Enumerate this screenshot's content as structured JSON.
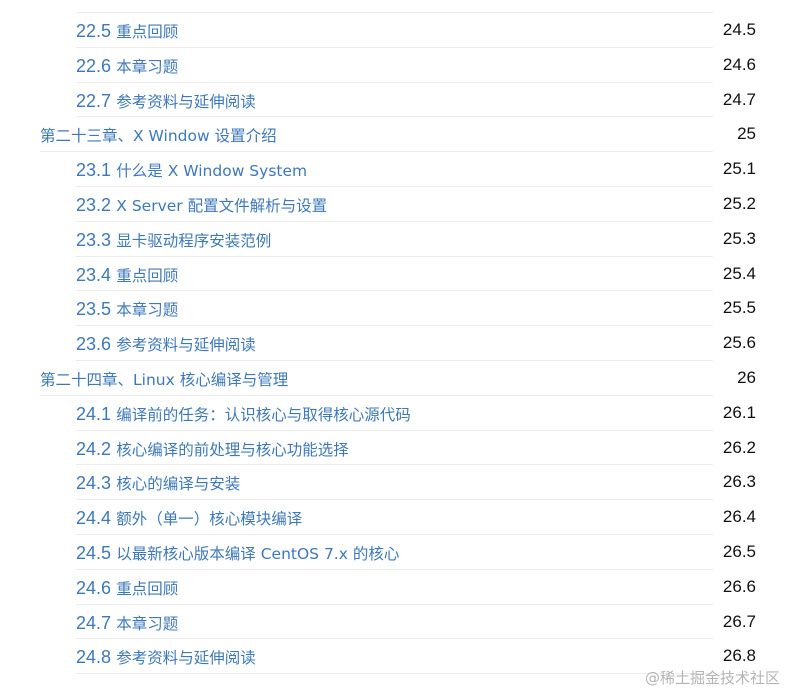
{
  "toc": [
    {
      "level": 2,
      "num": "22.5",
      "title": "重点回顾",
      "page": "24.5"
    },
    {
      "level": 2,
      "num": "22.6",
      "title": "本章习题",
      "page": "24.6"
    },
    {
      "level": 2,
      "num": "22.7",
      "title": "参考资料与延伸阅读",
      "page": "24.7"
    },
    {
      "level": 1,
      "num": "",
      "title": "第二十三章、X Window 设置介绍",
      "page": "25"
    },
    {
      "level": 2,
      "num": "23.1",
      "title": "什么是 X Window System",
      "page": "25.1"
    },
    {
      "level": 2,
      "num": "23.2",
      "title": "X Server 配置文件解析与设置",
      "page": "25.2"
    },
    {
      "level": 2,
      "num": "23.3",
      "title": "显卡驱动程序安装范例",
      "page": "25.3"
    },
    {
      "level": 2,
      "num": "23.4",
      "title": "重点回顾",
      "page": "25.4"
    },
    {
      "level": 2,
      "num": "23.5",
      "title": "本章习题",
      "page": "25.5"
    },
    {
      "level": 2,
      "num": "23.6",
      "title": "参考资料与延伸阅读",
      "page": "25.6"
    },
    {
      "level": 1,
      "num": "",
      "title": "第二十四章、Linux 核心编译与管理",
      "page": "26"
    },
    {
      "level": 2,
      "num": "24.1",
      "title": "编译前的任务：认识核心与取得核心源代码",
      "page": "26.1"
    },
    {
      "level": 2,
      "num": "24.2",
      "title": "核心编译的前处理与核心功能选择",
      "page": "26.2"
    },
    {
      "level": 2,
      "num": "24.3",
      "title": "核心的编译与安装",
      "page": "26.3"
    },
    {
      "level": 2,
      "num": "24.4",
      "title": "额外（单一）核心模块编译",
      "page": "26.4"
    },
    {
      "level": 2,
      "num": "24.5",
      "title": "以最新核心版本编译 CentOS 7.x 的核心",
      "page": "26.5"
    },
    {
      "level": 2,
      "num": "24.6",
      "title": "重点回顾",
      "page": "26.6"
    },
    {
      "level": 2,
      "num": "24.7",
      "title": "本章习题",
      "page": "26.7"
    },
    {
      "level": 2,
      "num": "24.8",
      "title": "参考资料与延伸阅读",
      "page": "26.8"
    }
  ],
  "watermark": "@稀土掘金技术社区",
  "colors": {
    "link": "#3d78bd"
  }
}
